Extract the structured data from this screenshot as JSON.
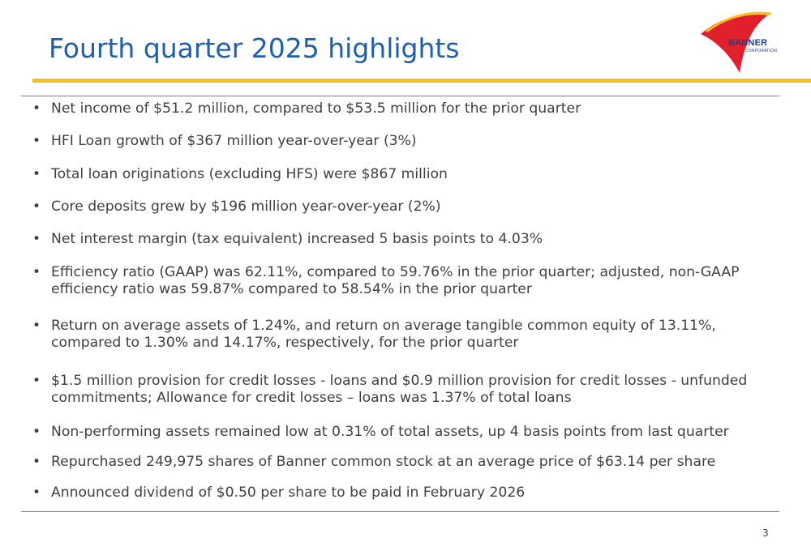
{
  "slide": {
    "title": "Fourth quarter 2025 highlights",
    "page_number": "3"
  },
  "logo": {
    "name": "BANNER",
    "sub": "CORPORATION"
  },
  "bullets": [
    "Net income of $51.2 million, compared to $53.5 million for the prior quarter",
    "HFI Loan growth of $367 million year-over-year (3%)",
    "Total loan originations (excluding HFS) were $867 million",
    "Core deposits grew by $196 million year-over-year (2%)",
    "Net interest margin (tax equivalent) increased 5 basis points to 4.03%",
    "Efficiency ratio (GAAP) was 62.11%, compared to 59.76% in the prior quarter; adjusted, non-GAAP efficiency ratio was 59.87% compared to 58.54% in the prior quarter",
    "Return on average assets of 1.24%, and return on average tangible common equity of 13.11%, compared to 1.30% and 14.17%, respectively, for the prior quarter",
    "$1.5 million provision for credit losses - loans and $0.9 million provision for credit losses - unfunded commitments; Allowance for credit losses – loans was 1.37% of total loans",
    "Non-performing assets remained low at 0.31% of total assets, up 4 basis points from last quarter",
    "Repurchased 249,975 shares of Banner common stock at an average price of $63.14 per share",
    "Announced dividend of $0.50 per share to be paid in February 2026"
  ],
  "colors": {
    "title": "#1f5ea8",
    "accent_rule": "#f5c21c",
    "logo_red": "#e0202a",
    "logo_yellow": "#f5c21c",
    "logo_blue": "#1f3f8f",
    "body_text": "#404040"
  }
}
